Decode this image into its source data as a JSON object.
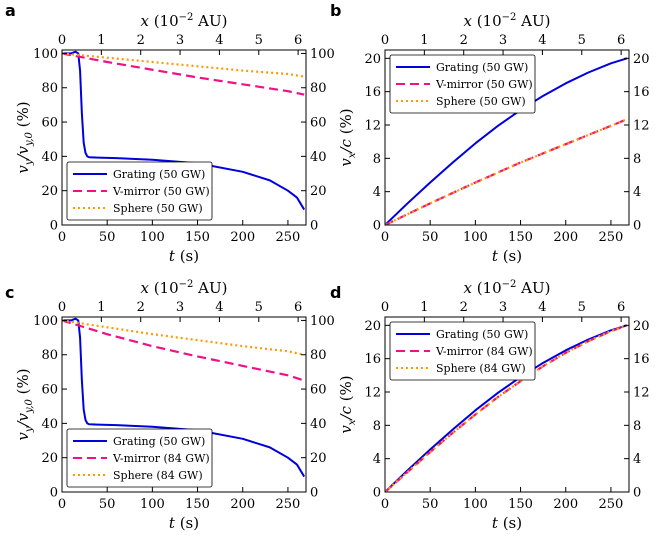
{
  "chart_data": [
    {
      "panel": "a",
      "type": "line",
      "xlabel": "t (s)",
      "ylabel": "v_y/v_y,0 (%)",
      "top_xlabel": "x (10^-2 AU)",
      "xlim": [
        0,
        270
      ],
      "ylim": [
        0,
        102
      ],
      "top_xlim": [
        0,
        6.2
      ],
      "x_ticks": [
        0,
        50,
        100,
        150,
        200,
        250
      ],
      "y_ticks": [
        0,
        20,
        40,
        60,
        80,
        100
      ],
      "top_x_ticks": [
        0,
        1,
        2,
        3,
        4,
        5,
        6
      ],
      "right_y_ticks": [
        0,
        20,
        40,
        60,
        80,
        100
      ],
      "legend_position": "bottom-left",
      "series": [
        {
          "name": "Grating (50 GW)",
          "color": "#0000dd",
          "dash": "solid",
          "x": [
            0,
            5,
            10,
            15,
            18,
            20,
            22,
            24,
            26,
            28,
            30,
            40,
            60,
            100,
            150,
            200,
            230,
            250,
            260,
            268
          ],
          "y": [
            100,
            100,
            100,
            101,
            100,
            90,
            65,
            48,
            42,
            40,
            39.5,
            39.3,
            39,
            38,
            36,
            31,
            26,
            20,
            16,
            9
          ]
        },
        {
          "name": "V-mirror (50 GW)",
          "color": "#ee1188",
          "dash": "dashed",
          "x": [
            0,
            50,
            100,
            150,
            200,
            250,
            268
          ],
          "y": [
            100,
            95,
            90.5,
            86,
            82,
            78,
            76
          ]
        },
        {
          "name": "Sphere (50 GW)",
          "color": "#ff9900",
          "dash": "dotted",
          "x": [
            0,
            50,
            100,
            150,
            200,
            250,
            268
          ],
          "y": [
            100,
            97.5,
            95,
            92.5,
            90,
            88,
            86.5
          ]
        }
      ]
    },
    {
      "panel": "b",
      "type": "line",
      "xlabel": "t (s)",
      "ylabel": "v_x/c (%)",
      "top_xlabel": "x (10^-2 AU)",
      "xlim": [
        0,
        270
      ],
      "ylim": [
        0,
        21
      ],
      "top_xlim": [
        0,
        6.2
      ],
      "x_ticks": [
        0,
        50,
        100,
        150,
        200,
        250
      ],
      "y_ticks": [
        0,
        4,
        8,
        12,
        16,
        20
      ],
      "top_x_ticks": [
        0,
        1,
        2,
        3,
        4,
        5,
        6
      ],
      "right_y_ticks": [
        0,
        4,
        8,
        12,
        16,
        20
      ],
      "legend_position": "top-left",
      "series": [
        {
          "name": "Grating (50 GW)",
          "color": "#0000dd",
          "dash": "solid",
          "x": [
            0,
            25,
            50,
            75,
            100,
            125,
            150,
            175,
            200,
            225,
            250,
            268
          ],
          "y": [
            0,
            2.6,
            5.1,
            7.5,
            9.8,
            11.9,
            13.8,
            15.5,
            17.0,
            18.3,
            19.4,
            20.0
          ]
        },
        {
          "name": "V-mirror (50 GW)",
          "color": "#ee1188",
          "dash": "dashed",
          "x": [
            0,
            50,
            100,
            150,
            200,
            250,
            268
          ],
          "y": [
            0,
            2.6,
            5.1,
            7.5,
            9.7,
            11.9,
            12.7
          ]
        },
        {
          "name": "Sphere (50 GW)",
          "color": "#ff9900",
          "dash": "dotted",
          "x": [
            0,
            50,
            100,
            150,
            200,
            250,
            268
          ],
          "y": [
            0,
            2.6,
            5.1,
            7.5,
            9.7,
            11.9,
            12.7
          ]
        }
      ]
    },
    {
      "panel": "c",
      "type": "line",
      "xlabel": "t (s)",
      "ylabel": "v_y/v_y,0 (%)",
      "top_xlabel": "x (10^-2 AU)",
      "xlim": [
        0,
        270
      ],
      "ylim": [
        0,
        102
      ],
      "top_xlim": [
        0,
        6.2
      ],
      "x_ticks": [
        0,
        50,
        100,
        150,
        200,
        250
      ],
      "y_ticks": [
        0,
        20,
        40,
        60,
        80,
        100
      ],
      "top_x_ticks": [
        0,
        1,
        2,
        3,
        4,
        5,
        6
      ],
      "right_y_ticks": [
        0,
        20,
        40,
        60,
        80,
        100
      ],
      "legend_position": "bottom-left",
      "series": [
        {
          "name": "Grating (50 GW)",
          "color": "#0000dd",
          "dash": "solid",
          "x": [
            0,
            5,
            10,
            15,
            18,
            20,
            22,
            24,
            26,
            28,
            30,
            40,
            60,
            100,
            150,
            200,
            230,
            250,
            260,
            268
          ],
          "y": [
            100,
            100,
            100,
            101,
            100,
            90,
            65,
            48,
            42,
            40,
            39.5,
            39.3,
            39,
            38,
            36,
            31,
            26,
            20,
            16,
            9
          ]
        },
        {
          "name": "V-mirror (84 GW)",
          "color": "#ee1188",
          "dash": "dashed",
          "x": [
            0,
            50,
            100,
            150,
            200,
            250,
            268
          ],
          "y": [
            100,
            92,
            85,
            79,
            73.5,
            68,
            65
          ]
        },
        {
          "name": "Sphere (84 GW)",
          "color": "#ff9900",
          "dash": "dotted",
          "x": [
            0,
            50,
            100,
            150,
            200,
            250,
            268
          ],
          "y": [
            100,
            96,
            92,
            88.5,
            85,
            82,
            80
          ]
        }
      ]
    },
    {
      "panel": "d",
      "type": "line",
      "xlabel": "t (s)",
      "ylabel": "v_x/c (%)",
      "top_xlabel": "x (10^-2 AU)",
      "xlim": [
        0,
        270
      ],
      "ylim": [
        0,
        21
      ],
      "top_xlim": [
        0,
        6.2
      ],
      "x_ticks": [
        0,
        50,
        100,
        150,
        200,
        250
      ],
      "y_ticks": [
        0,
        4,
        8,
        12,
        16,
        20
      ],
      "top_x_ticks": [
        0,
        1,
        2,
        3,
        4,
        5,
        6
      ],
      "right_y_ticks": [
        0,
        4,
        8,
        12,
        16,
        20
      ],
      "legend_position": "top-left",
      "series": [
        {
          "name": "Grating (50 GW)",
          "color": "#0000dd",
          "dash": "solid",
          "x": [
            0,
            25,
            50,
            75,
            100,
            125,
            150,
            175,
            200,
            225,
            250,
            268
          ],
          "y": [
            0,
            2.6,
            5.1,
            7.5,
            9.8,
            11.9,
            13.8,
            15.5,
            17.0,
            18.3,
            19.4,
            20.0
          ]
        },
        {
          "name": "V-mirror (84 GW)",
          "color": "#ee1188",
          "dash": "dashed",
          "x": [
            0,
            25,
            50,
            75,
            100,
            125,
            150,
            175,
            200,
            225,
            250,
            268
          ],
          "y": [
            0,
            2.4,
            4.8,
            7.1,
            9.3,
            11.4,
            13.3,
            15.1,
            16.7,
            18.1,
            19.3,
            20.0
          ]
        },
        {
          "name": "Sphere (84 GW)",
          "color": "#ff9900",
          "dash": "dotted",
          "x": [
            0,
            25,
            50,
            75,
            100,
            125,
            150,
            175,
            200,
            225,
            250,
            268
          ],
          "y": [
            0,
            2.4,
            4.8,
            7.1,
            9.3,
            11.4,
            13.3,
            15.1,
            16.7,
            18.1,
            19.3,
            20.0
          ]
        }
      ]
    }
  ]
}
